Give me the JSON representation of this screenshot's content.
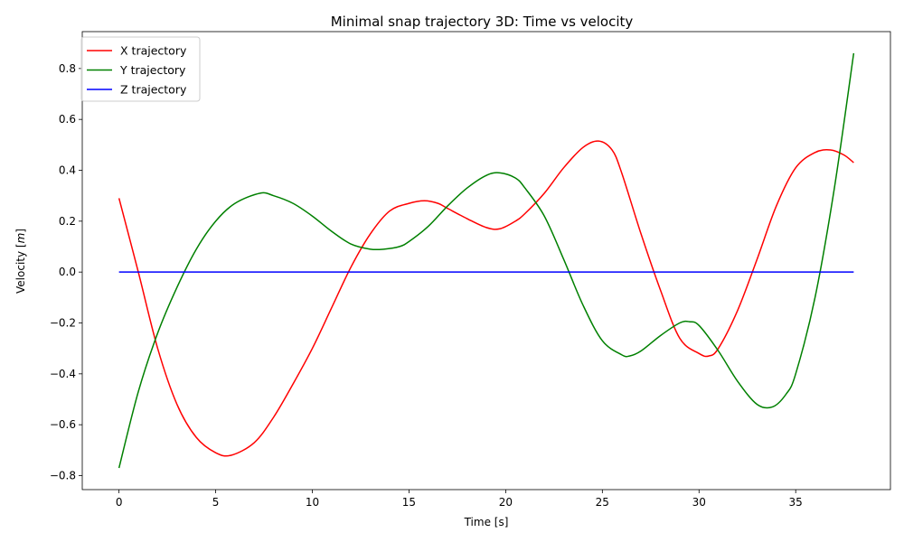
{
  "chart_data": {
    "type": "line",
    "title": "Minimal snap trajectory 3D: Time vs velocity",
    "xlabel": "Time [s]",
    "ylabel": "Velocity [",
    "ylabel_unit": "m",
    "ylabel_close": "]",
    "xlim": [
      -1.9,
      39.9
    ],
    "ylim": [
      -0.855,
      0.945
    ],
    "xticks": [
      0,
      5,
      10,
      15,
      20,
      25,
      30,
      35
    ],
    "yticks": [
      -0.8,
      -0.6,
      -0.4,
      -0.2,
      0.0,
      0.2,
      0.4,
      0.6,
      0.8
    ],
    "xtick_labels": [
      "0",
      "5",
      "10",
      "15",
      "20",
      "25",
      "30",
      "35"
    ],
    "ytick_labels": [
      "−0.8",
      "−0.6",
      "−0.4",
      "−0.2",
      "0.0",
      "0.2",
      "0.4",
      "0.6",
      "0.8"
    ],
    "grid": false,
    "legend_position": "top-left",
    "series": [
      {
        "name": "X trajectory",
        "color": "#ff0000",
        "x": [
          0,
          1,
          2,
          3,
          4,
          5,
          5.8,
          7,
          8,
          9,
          10,
          11,
          12,
          13,
          14,
          15,
          15.8,
          16.5,
          17,
          18,
          19,
          19.7,
          20.5,
          21,
          22,
          23,
          24,
          24.8,
          25.5,
          26,
          27,
          28,
          29,
          30,
          30.5,
          31,
          32,
          33,
          34,
          35,
          36,
          36.8,
          37.5,
          38
        ],
        "y": [
          0.29,
          0.0,
          -0.3,
          -0.52,
          -0.65,
          -0.71,
          -0.72,
          -0.67,
          -0.57,
          -0.44,
          -0.3,
          -0.14,
          0.02,
          0.15,
          0.24,
          0.27,
          0.28,
          0.27,
          0.25,
          0.21,
          0.175,
          0.17,
          0.2,
          0.23,
          0.31,
          0.41,
          0.49,
          0.515,
          0.48,
          0.39,
          0.15,
          -0.07,
          -0.26,
          -0.32,
          -0.33,
          -0.3,
          -0.15,
          0.05,
          0.26,
          0.41,
          0.47,
          0.48,
          0.46,
          0.43
        ]
      },
      {
        "name": "Y trajectory",
        "color": "#008000",
        "x": [
          0,
          1,
          2,
          3,
          4,
          5,
          6,
          7.3,
          8,
          9,
          10,
          11,
          12,
          13,
          13.7,
          14.5,
          15,
          16,
          17,
          18,
          19,
          19.7,
          20.5,
          21,
          22,
          23,
          24,
          25,
          26,
          26.4,
          27,
          28,
          29,
          29.5,
          30,
          31,
          32,
          33,
          33.8,
          34.5,
          35,
          36,
          37,
          38
        ],
        "y": [
          -0.77,
          -0.47,
          -0.24,
          -0.06,
          0.09,
          0.2,
          0.27,
          0.31,
          0.3,
          0.27,
          0.22,
          0.16,
          0.11,
          0.09,
          0.09,
          0.1,
          0.12,
          0.18,
          0.26,
          0.33,
          0.38,
          0.39,
          0.37,
          0.33,
          0.22,
          0.05,
          -0.13,
          -0.27,
          -0.325,
          -0.33,
          -0.31,
          -0.25,
          -0.2,
          -0.195,
          -0.21,
          -0.31,
          -0.43,
          -0.52,
          -0.53,
          -0.48,
          -0.4,
          -0.1,
          0.33,
          0.86
        ]
      },
      {
        "name": "Z trajectory",
        "color": "#0000ff",
        "x": [
          0,
          38
        ],
        "y": [
          0,
          0
        ]
      }
    ]
  }
}
